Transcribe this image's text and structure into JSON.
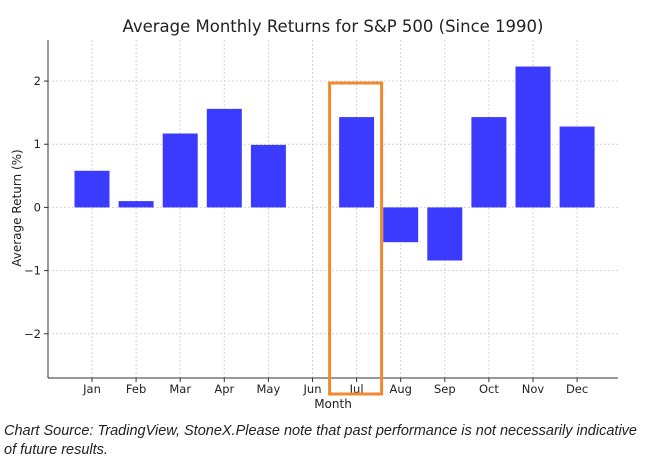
{
  "chart_data": {
    "type": "bar",
    "title": "Average Monthly Returns for S&P 500 (Since 1990)",
    "xlabel": "Month",
    "ylabel": "Average Return (%)",
    "categories": [
      "Jan",
      "Feb",
      "Mar",
      "Apr",
      "May",
      "Jun",
      "Jul",
      "Aug",
      "Sep",
      "Oct",
      "Nov",
      "Dec"
    ],
    "values": [
      0.58,
      0.1,
      1.17,
      1.56,
      0.99,
      0.0,
      1.43,
      -0.55,
      -0.84,
      1.43,
      2.23,
      1.28
    ],
    "ylim": [
      -2.7,
      2.65
    ],
    "yticks": [
      -2,
      -1,
      0,
      1,
      2
    ],
    "ytick_labels": [
      "−2",
      "−1",
      "0",
      "1",
      "2"
    ],
    "grid": true,
    "bar_color": "#3b3bff",
    "highlight": {
      "category": "Jul",
      "color": "#f0892f"
    }
  },
  "caption": "Chart Source: TradingView, StoneX.Please note that past performance is not necessarily indicative of future results."
}
